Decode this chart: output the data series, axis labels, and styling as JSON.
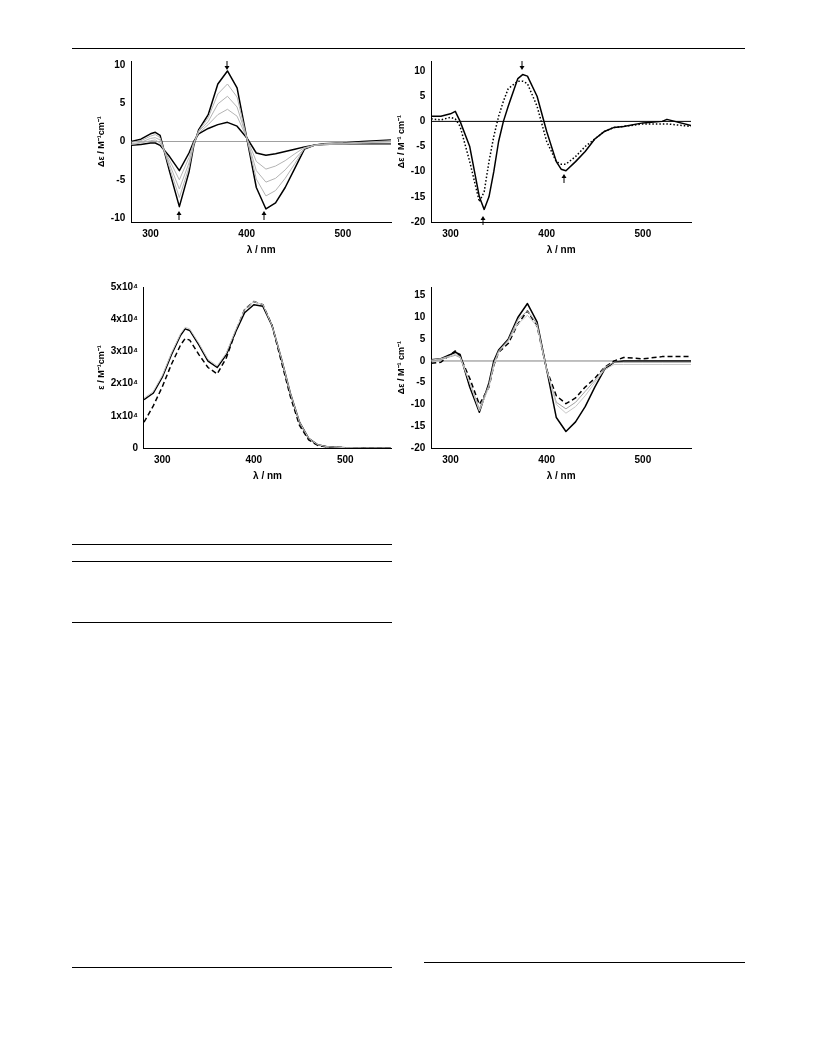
{
  "chart_data": [
    {
      "type": "line",
      "xlabel": "λ / nm",
      "ylabel": "Δε / M⁻¹cm⁻¹",
      "xlim": [
        280,
        550
      ],
      "ylim": [
        -10.5,
        10.5
      ],
      "xticks": [
        300,
        400,
        500
      ],
      "yticks": [
        -10,
        -5,
        0,
        5,
        10
      ],
      "x": [
        280,
        290,
        300,
        305,
        310,
        320,
        330,
        340,
        345,
        350,
        360,
        370,
        380,
        390,
        400,
        410,
        420,
        430,
        440,
        450,
        460,
        470,
        480,
        500,
        520,
        550
      ],
      "ref_lines": [
        {
          "axis": "y",
          "value": 0,
          "color": "#a0a0a0"
        }
      ],
      "series": [
        {
          "color": "#b4b4b4",
          "values": [
            -0.4,
            -0.2,
            0.1,
            0.2,
            -0.2,
            -2.5,
            -5,
            -2.1,
            -0.1,
            1.1,
            2.2,
            3.5,
            4.2,
            3.3,
            0.5,
            -2.6,
            -3.6,
            -3.2,
            -2.5,
            -1.6,
            -0.8,
            -0.5,
            -0.4,
            -0.3,
            -0.2,
            -0.2
          ]
        },
        {
          "color": "#b4b4b4",
          "values": [
            -0.3,
            -0.1,
            0.4,
            0.5,
            0.2,
            -3,
            -6.2,
            -2.8,
            -0.3,
            1.3,
            2.6,
            4.9,
            5.9,
            4.5,
            0.5,
            -3.8,
            -5.3,
            -4.8,
            -3.7,
            -2.3,
            -0.9,
            -0.5,
            -0.4,
            -0.3,
            -0.2,
            0
          ]
        },
        {
          "color": "#b4b4b4",
          "values": [
            -0.1,
            0.1,
            0.7,
            0.9,
            0.5,
            -3.5,
            -7.3,
            -3.4,
            -0.4,
            1.4,
            3.1,
            6.2,
            7.5,
            5.8,
            0.5,
            -4.9,
            -7.1,
            -6.4,
            -4.8,
            -2.9,
            -0.9,
            -0.5,
            -0.3,
            -0.2,
            -0.1,
            0.1
          ]
        },
        {
          "color": "#000000",
          "values": [
            0,
            0.3,
            1.0,
            1.2,
            0.8,
            -4,
            -8.5,
            -4,
            -0.5,
            1.5,
            3.5,
            7.5,
            9.2,
            7,
            0.5,
            -6,
            -8.8,
            -8,
            -6,
            -3.5,
            -1,
            -0.5,
            -0.3,
            -0.2,
            0,
            0.2
          ]
        },
        {
          "color": "#000000",
          "values": [
            -0.5,
            -0.4,
            -0.2,
            -0.2,
            -0.5,
            -2,
            -3.8,
            -1.5,
            0,
            1,
            1.7,
            2.2,
            2.5,
            2,
            0.5,
            -1.5,
            -1.8,
            -1.6,
            -1.3,
            -1,
            -0.7,
            -0.5,
            -0.4,
            -0.3,
            -0.3,
            -0.3
          ]
        }
      ]
    },
    {
      "type": "line",
      "xlabel": "λ / nm",
      "ylabel": "Δε / M⁻¹ cm⁻¹",
      "xlim": [
        280,
        550
      ],
      "ylim": [
        -20,
        12
      ],
      "xticks": [
        300,
        400,
        500
      ],
      "yticks": [
        -20,
        -15,
        -10,
        -5,
        0,
        5,
        10
      ],
      "x": [
        280,
        290,
        300,
        305,
        310,
        320,
        330,
        335,
        340,
        345,
        350,
        355,
        360,
        370,
        375,
        380,
        390,
        400,
        410,
        415,
        420,
        430,
        440,
        450,
        460,
        470,
        480,
        500,
        520,
        525,
        550
      ],
      "ref_lines": [
        {
          "axis": "y",
          "value": 0,
          "color": "#000000"
        }
      ],
      "series": [
        {
          "color": "#000000",
          "values": [
            1,
            1,
            1.5,
            2,
            0,
            -5,
            -15,
            -17.5,
            -15,
            -10,
            -4,
            0,
            3,
            8.5,
            9.3,
            9,
            5,
            -2,
            -8,
            -9.5,
            -9.8,
            -8,
            -6,
            -3.5,
            -2,
            -1.2,
            -1,
            -0.3,
            0,
            0.4,
            -0.8
          ]
        },
        {
          "color": "#000000",
          "line_style": "dotted",
          "values": [
            0.5,
            0.3,
            0.8,
            0.5,
            -1,
            -8,
            -16,
            -14,
            -8,
            -3,
            1,
            4,
            6.5,
            8,
            8,
            7.5,
            3,
            -4,
            -8,
            -8.5,
            -8.5,
            -7,
            -5,
            -3.5,
            -2,
            -1.2,
            -1,
            -0.5,
            -0.5,
            -0.5,
            -1
          ]
        }
      ]
    },
    {
      "type": "line",
      "xlabel": "λ / nm",
      "ylabel": "ε / M⁻¹cm⁻¹",
      "xlim": [
        280,
        550
      ],
      "ylim": [
        0,
        50000
      ],
      "xticks": [
        300,
        400,
        500
      ],
      "yticks": [
        0,
        {
          "value": 10000,
          "label": "1x10⁴"
        },
        {
          "value": 20000,
          "label": "2x10⁴"
        },
        {
          "value": 30000,
          "label": "3x10⁴"
        },
        {
          "value": 40000,
          "label": "4x10⁴"
        },
        {
          "value": 50000,
          "label": "5x10⁴"
        }
      ],
      "x": [
        280,
        290,
        300,
        310,
        320,
        325,
        330,
        340,
        350,
        360,
        370,
        380,
        390,
        400,
        410,
        420,
        430,
        440,
        450,
        460,
        470,
        480,
        500,
        520,
        550
      ],
      "series": [
        {
          "color": "#c8c8c8",
          "values": [
            15500,
            17500,
            22500,
            29500,
            35500,
            37500,
            37000,
            32500,
            27500,
            25500,
            29500,
            36500,
            43000,
            45500,
            44500,
            38000,
            28000,
            17000,
            8000,
            3000,
            1000,
            400,
            100,
            0,
            0
          ]
        },
        {
          "color": "#000000",
          "values": [
            15000,
            17000,
            22000,
            29000,
            35000,
            37000,
            36500,
            32000,
            27000,
            25000,
            29000,
            36000,
            42000,
            44500,
            44000,
            38000,
            28000,
            17000,
            8000,
            3000,
            1000,
            400,
            100,
            0,
            0
          ]
        },
        {
          "color": "#000000",
          "line_style": "dashed",
          "values": [
            8000,
            13000,
            19000,
            26000,
            32000,
            34000,
            33500,
            29000,
            25000,
            23000,
            28000,
            36000,
            43000,
            45500,
            44500,
            38000,
            27000,
            16000,
            7000,
            2500,
            800,
            300,
            100,
            0,
            0
          ]
        }
      ]
    },
    {
      "type": "line",
      "xlabel": "λ / nm",
      "ylabel": "Δε / M⁻¹ cm⁻¹",
      "xlim": [
        280,
        550
      ],
      "ylim": [
        -20,
        17
      ],
      "xticks": [
        300,
        400,
        500
      ],
      "yticks": [
        -20,
        -15,
        -10,
        -5,
        0,
        5,
        10,
        15
      ],
      "x": [
        280,
        290,
        300,
        305,
        310,
        320,
        330,
        340,
        345,
        350,
        360,
        370,
        380,
        390,
        400,
        410,
        420,
        430,
        440,
        450,
        460,
        470,
        480,
        500,
        520,
        550
      ],
      "ref_lines": [
        {
          "axis": "y",
          "value": 0,
          "color": "#808080"
        }
      ],
      "series": [
        {
          "color": "#c8c8c8",
          "values": [
            0.2,
            0.5,
            1.2,
            1.5,
            1,
            -5,
            -11.5,
            -6,
            -1,
            2,
            4.5,
            8.5,
            10.5,
            8,
            -2,
            -10,
            -12,
            -10.5,
            -8,
            -5,
            -2,
            -0.8,
            -0.8,
            -0.8,
            -0.8,
            -0.8
          ]
        },
        {
          "color": "#a0a0a0",
          "values": [
            0,
            0.3,
            1,
            1.3,
            0.8,
            -5,
            -11,
            -5.5,
            -0.5,
            2.3,
            4.8,
            9.5,
            11.5,
            8.5,
            -2,
            -9.5,
            -11,
            -9.5,
            -7,
            -4.5,
            -1.5,
            -0.3,
            -0.3,
            -0.3,
            -0.3,
            -0.3
          ]
        },
        {
          "color": "#000000",
          "values": [
            0.3,
            0.5,
            1.5,
            2,
            1.5,
            -6,
            -11.8,
            -5,
            0,
            2.5,
            5,
            10,
            13.2,
            9,
            -2,
            -13,
            -16.2,
            -14,
            -10.5,
            -6,
            -2,
            -0.3,
            0,
            0,
            0,
            0
          ]
        },
        {
          "color": "#000000",
          "line_style": "dashed",
          "values": [
            -0.5,
            -0.3,
            1.5,
            2.3,
            1,
            -4,
            -10,
            -6,
            -1,
            2,
            4,
            8.5,
            11.5,
            8,
            -2,
            -8,
            -9.8,
            -8.5,
            -6,
            -4,
            -1.5,
            0,
            0.8,
            0.5,
            1,
            1
          ]
        }
      ]
    }
  ]
}
